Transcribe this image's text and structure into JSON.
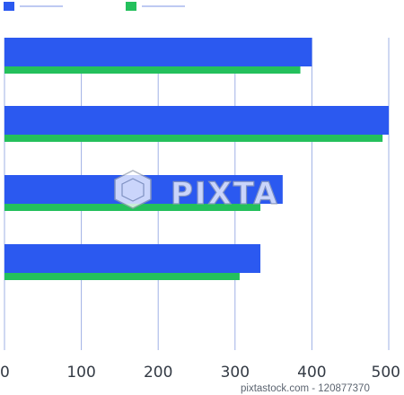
{
  "colors": {
    "series_blue": "#2b59f0",
    "series_green": "#24c05c",
    "gridline": "#9fb1e6",
    "legend_line": "#a9b9ee"
  },
  "chart_data": {
    "type": "bar",
    "orientation": "horizontal",
    "categories": [
      "",
      "",
      "",
      ""
    ],
    "series": [
      {
        "values": [
          400,
          500,
          362,
          333
        ]
      },
      {
        "values": [
          385,
          492,
          333,
          306
        ]
      }
    ],
    "xlim": [
      0,
      500
    ],
    "xticks": [
      "0",
      "100",
      "200",
      "300",
      "400",
      "500"
    ],
    "grid": "vertical",
    "legend": "top-left"
  },
  "watermark": {
    "brand": "PIXTA",
    "credit": "pixtastock.com - 120877370"
  }
}
